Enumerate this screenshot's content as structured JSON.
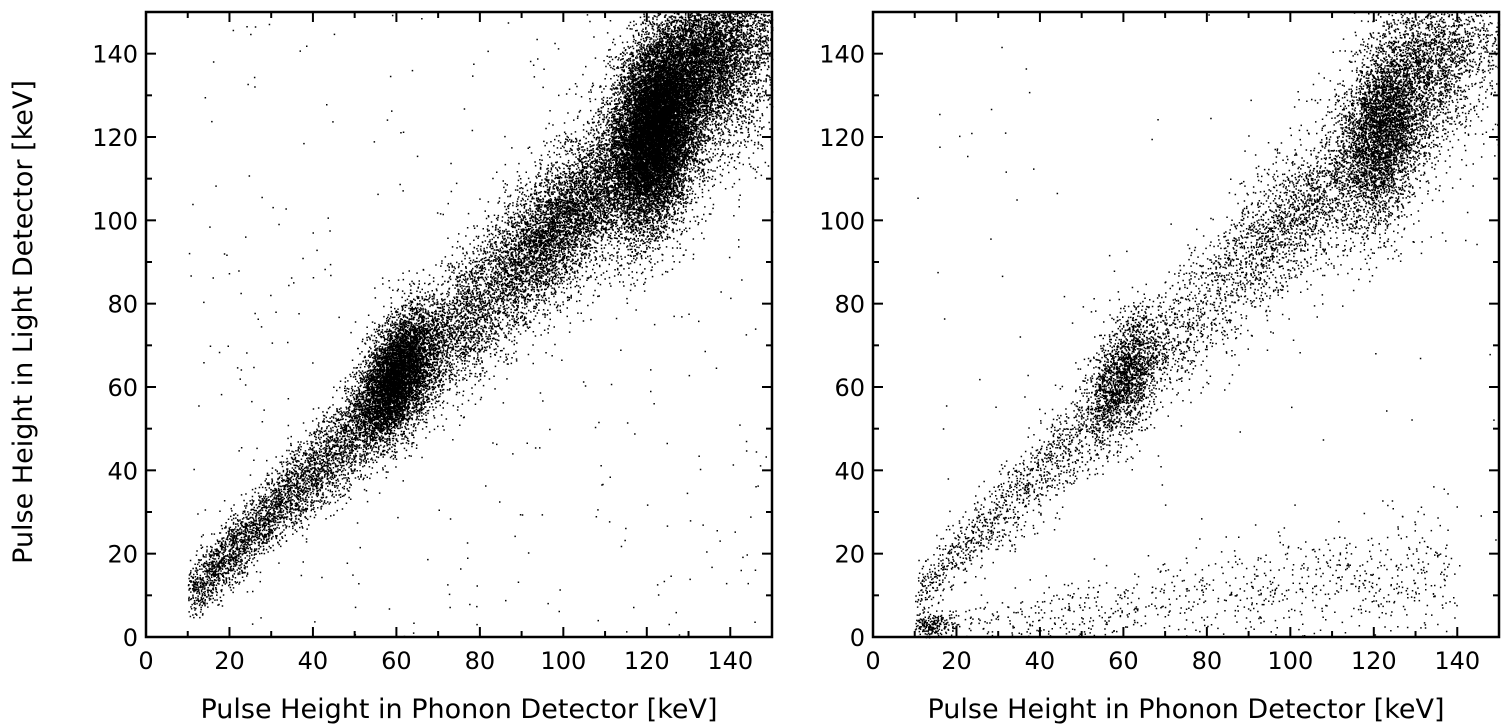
{
  "figure": {
    "y_axis_title": "Pulse Height in Light Detector  [keV]"
  },
  "chart_data": [
    {
      "type": "scatter",
      "title": "",
      "xlabel": "Pulse Height in Phonon Detector  [keV]",
      "ylabel": "Pulse Height in Light Detector  [keV]",
      "xlim": [
        0,
        150
      ],
      "ylim": [
        0,
        150
      ],
      "x_ticks": [
        0,
        20,
        40,
        60,
        80,
        100,
        120,
        140
      ],
      "y_ticks": [
        0,
        20,
        40,
        60,
        80,
        100,
        120,
        140
      ],
      "grid": false,
      "legend": "none",
      "marker_color": "#000000",
      "distribution": {
        "band": "electron-recoil band along light ≈ phonon from ~10 to 150 keV",
        "clusters": [
          {
            "x": 60,
            "y": 63,
            "note": "dense cluster"
          },
          {
            "x": 122,
            "y": 122,
            "note": "densest cluster"
          },
          {
            "x": 135,
            "y": 138,
            "note": "dense cluster near top"
          }
        ],
        "threshold_x": 10
      }
    },
    {
      "type": "scatter",
      "title": "",
      "xlabel": "Pulse Height in Phonon Detector  [keV]",
      "ylabel": "",
      "xlim": [
        0,
        150
      ],
      "ylim": [
        0,
        150
      ],
      "x_ticks": [
        0,
        20,
        40,
        60,
        80,
        100,
        120,
        140
      ],
      "y_ticks": [
        0,
        20,
        40,
        60,
        80,
        100,
        120,
        140
      ],
      "grid": false,
      "legend": "none",
      "marker_color": "#000000",
      "distribution": {
        "band": "electron-recoil band along light ≈ phonon from ~10 to 150 keV",
        "lower_band": "nuclear-recoil band along light ≈ 0.12 × phonon from ~10 to 140 keV",
        "clusters": [
          {
            "x": 60,
            "y": 63,
            "note": "dense cluster"
          },
          {
            "x": 122,
            "y": 122,
            "note": "densest cluster"
          },
          {
            "x": 135,
            "y": 138,
            "note": "dense cluster near top"
          }
        ],
        "threshold_x": 10
      }
    }
  ]
}
